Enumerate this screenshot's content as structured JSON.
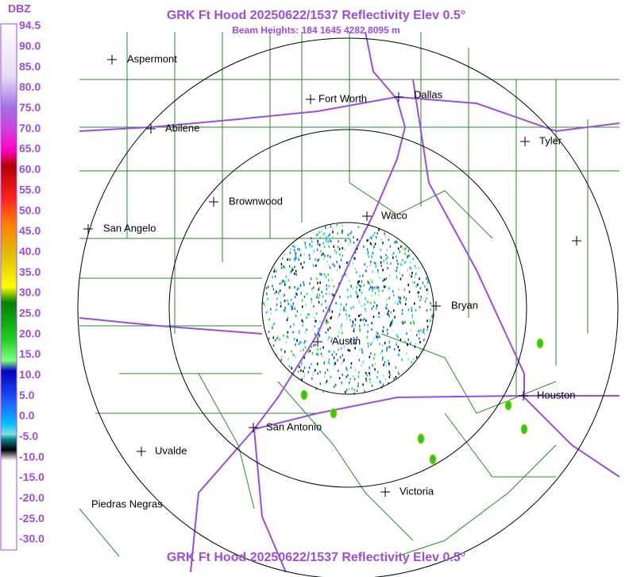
{
  "header": {
    "title": "GRK Ft Hood 20250622/1537 Reflectivity Elev 0.5°",
    "subtitle": "Beam Heights: 184 1645 4282 8095 m",
    "footer": "GRK Ft Hood 20250622/1537 Reflectivity Elev 0.5°"
  },
  "legend": {
    "unit": "DBZ",
    "labels": [
      "94.5",
      "90.0",
      "85.0",
      "80.0",
      "75.0",
      "70.0",
      "65.0",
      "60.0",
      "55.0",
      "50.0",
      "45.0",
      "40.0",
      "35.0",
      "30.0",
      "25.0",
      "20.0",
      "15.0",
      "10.0",
      "5.0",
      "0.0",
      "-5.0",
      "-10.0",
      "-15.0",
      "-20.0",
      "-25.0",
      "-30.0"
    ]
  },
  "cities": [
    "Aspermont",
    "Fort Worth",
    "Dallas",
    "Abilene",
    "Tyler",
    "Brownwood",
    "Waco",
    "San Angelo",
    "Bryan",
    "Austin",
    "Houston",
    "San Antonio",
    "Uvalde",
    "Victoria",
    "Piedras Negras"
  ]
}
